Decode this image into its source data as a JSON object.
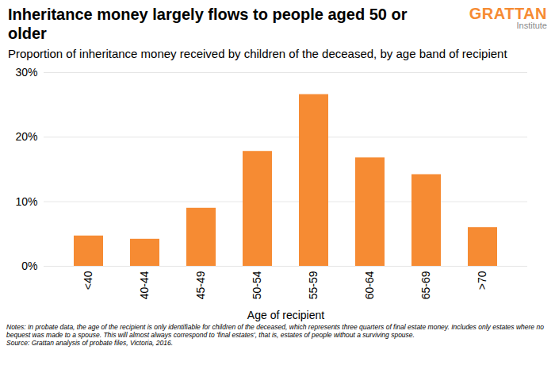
{
  "chart_data": {
    "type": "bar",
    "title": "Inheritance money largely flows to people aged 50 or older",
    "logo": "GRATTAN",
    "logo_subtitle": "Institute",
    "subtitle": "Proportion of inheritance money received by children of the deceased, by age band of recipient",
    "categories": [
      "<40",
      "40-44",
      "45-49",
      "50-54",
      "55-59",
      "60-64",
      "65-69",
      ">70"
    ],
    "values": [
      4.7,
      4.2,
      9.0,
      17.8,
      26.6,
      16.8,
      14.2,
      6.0
    ],
    "color": "#F68B33",
    "xlabel": "Age of recipient",
    "ylim": [
      0,
      30
    ],
    "yticks": [
      {
        "value": 0,
        "label": "0%"
      },
      {
        "value": 10,
        "label": "10%"
      },
      {
        "value": 20,
        "label": "20%"
      },
      {
        "value": 30,
        "label": "30%"
      }
    ],
    "grid": true,
    "notes": "Notes: In probate data, the age of the recipient is only identifiable for children of the deceased, which represents three quarters of final estate money. Includes only estates where no bequest was made to a spouse. This will almost always correspond to 'final estates', that is, estates of people without a surviving spouse.",
    "source": "Source: Grattan analysis of probate files, Victoria, 2016."
  }
}
